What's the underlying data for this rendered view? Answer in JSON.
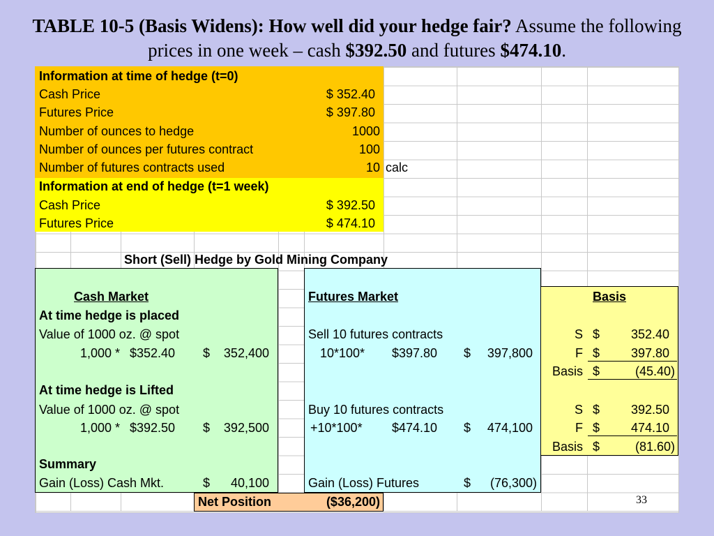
{
  "title": {
    "bold": "TABLE 10-5 (Basis Widens): How well did your hedge fair?",
    "normal": " Assume the following prices in one week – cash ",
    "cash": "$392.50",
    "and": " and futures ",
    "futures": "$474.10",
    "end": "."
  },
  "hedge_info": {
    "header": "Information at time of hedge (t=0)",
    "rows": [
      {
        "label": "Cash Price",
        "value": "$ 352.40"
      },
      {
        "label": "Futures Price",
        "value": "$ 397.80"
      },
      {
        "label": "Number of ounces to hedge",
        "value": "1000"
      },
      {
        "label": "Number of ounces per futures contract",
        "value": "100"
      },
      {
        "label": "Number of futures contracts used",
        "value": "10"
      }
    ],
    "calc": "calc"
  },
  "end_info": {
    "header": "Information at end of hedge (t=1 week)",
    "rows": [
      {
        "label": "Cash Price",
        "value": "$ 392.50"
      },
      {
        "label": "Futures Price",
        "value": "$ 474.10"
      }
    ]
  },
  "section_title": "Short (Sell) Hedge by Gold Mining Company",
  "cash_market": {
    "header": "Cash Market",
    "placed_header": "At time hedge is placed",
    "placed_desc": "Value of 1000 oz. @ spot",
    "placed_qty": "1,000 *",
    "placed_price": "$352.40",
    "placed_total_sym": "$",
    "placed_total": "352,400",
    "lifted_header": "At time hedge is Lifted",
    "lifted_desc": "Value of 1000 oz. @ spot",
    "lifted_qty": "1,000 *",
    "lifted_price": "$392.50",
    "lifted_total_sym": "$",
    "lifted_total": "392,500",
    "summary_header": "Summary",
    "gain_label": "Gain (Loss) Cash Mkt.",
    "gain_sym": "$",
    "gain_value": "40,100"
  },
  "futures_market": {
    "header": "Futures Market",
    "sell_desc": "Sell 10 futures contracts",
    "sell_qty": "10*100*",
    "sell_price": "$397.80",
    "sell_total_sym": "$",
    "sell_total": "397,800",
    "buy_desc": "Buy 10 futures contracts",
    "buy_qty": "+10*100*",
    "buy_price": "$474.10",
    "buy_total_sym": "$",
    "buy_total": "474,100",
    "gain_label": "Gain (Loss) Futures",
    "gain_sym": "$",
    "gain_value": "(76,300)"
  },
  "basis": {
    "header": "Basis",
    "t0": [
      {
        "label": "S",
        "sym": "$",
        "value": "352.40"
      },
      {
        "label": "F",
        "sym": "$",
        "value": "397.80"
      },
      {
        "label": "Basis",
        "sym": "$",
        "value": "(45.40)"
      }
    ],
    "t1": [
      {
        "label": "S",
        "sym": "$",
        "value": "392.50"
      },
      {
        "label": "F",
        "sym": "$",
        "value": "474.10"
      },
      {
        "label": "Basis",
        "sym": "$",
        "value": "(81.60)"
      }
    ]
  },
  "net_position": {
    "label": "Net Position",
    "value": "($36,200)"
  },
  "slide_number": "33"
}
